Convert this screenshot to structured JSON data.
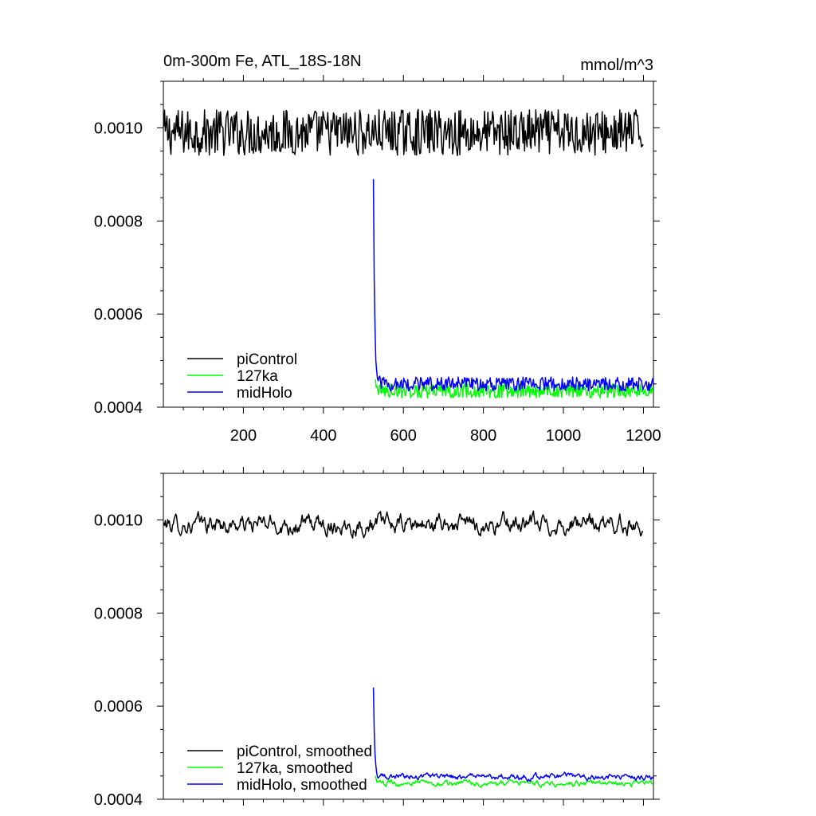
{
  "chart_data": [
    {
      "type": "line",
      "title": "0m-300m Fe, ATL_18S-18N",
      "units": "mmol/m^3",
      "xlim": [
        0,
        1225
      ],
      "ylim": [
        0.0004,
        0.0011
      ],
      "xticks": [
        200,
        400,
        600,
        800,
        1000,
        1200
      ],
      "xticklabels": [
        "200",
        "400",
        "600",
        "800",
        "1000",
        "1200"
      ],
      "yticks": [
        0.0004,
        0.0006,
        0.0008,
        0.001
      ],
      "yticklabels": [
        "0.0004",
        "0.0006",
        "0.0008",
        "0.0010"
      ],
      "legend_position": "bottom-left",
      "series": [
        {
          "name": "piControl",
          "color": "#000000",
          "x_start": 1,
          "x_end": 1200,
          "mean": 0.00099,
          "amplitude": 5e-05,
          "smoothed": false
        },
        {
          "name": "127ka",
          "color": "#00ff00",
          "x_start": 530,
          "x_end": 1225,
          "start_value": 0.00046,
          "mean": 0.000435,
          "amplitude": 1.5e-05,
          "smoothed": false
        },
        {
          "name": "midHolo",
          "color": "#0000ff",
          "x_start": 525,
          "x_end": 1225,
          "start_value": 0.00089,
          "mean": 0.00045,
          "amplitude": 1.5e-05,
          "smoothed": false
        }
      ]
    },
    {
      "type": "line",
      "title": "",
      "units": "",
      "xlim": [
        0,
        1225
      ],
      "ylim": [
        0.0004,
        0.0011
      ],
      "xticks": [
        200,
        400,
        600,
        800,
        1000,
        1200
      ],
      "xticklabels": [],
      "yticks": [
        0.0004,
        0.0006,
        0.0008,
        0.001
      ],
      "yticklabels": [
        "0.0004",
        "0.0006",
        "0.0008",
        "0.0010"
      ],
      "legend_position": "bottom-left",
      "series": [
        {
          "name": "piControl, smoothed",
          "color": "#000000",
          "x_start": 1,
          "x_end": 1200,
          "mean": 0.00099,
          "amplitude": 3e-05,
          "smoothed": true
        },
        {
          "name": "127ka, smoothed",
          "color": "#00ff00",
          "x_start": 530,
          "x_end": 1225,
          "start_value": 0.00045,
          "mean": 0.000435,
          "amplitude": 1e-05,
          "smoothed": true
        },
        {
          "name": "midHolo, smoothed",
          "color": "#0000ff",
          "x_start": 525,
          "x_end": 1225,
          "start_value": 0.00064,
          "mean": 0.000448,
          "amplitude": 1e-05,
          "smoothed": true
        }
      ]
    }
  ]
}
